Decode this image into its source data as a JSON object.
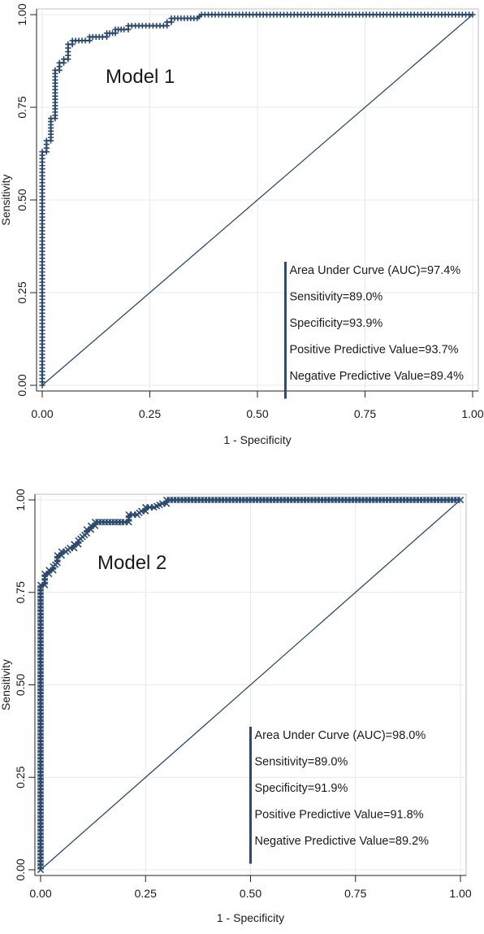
{
  "chart_data": [
    {
      "type": "line",
      "title": "",
      "annotation_title": "Model 1",
      "xlabel": "1 - Specificity",
      "ylabel": "Sensitivity",
      "xlim": [
        0,
        1
      ],
      "ylim": [
        0,
        1
      ],
      "x_ticks": [
        "0.00",
        "0.25",
        "0.50",
        "0.75",
        "1.00"
      ],
      "y_ticks": [
        "0.00",
        "0.25",
        "0.50",
        "0.75",
        "1.00"
      ],
      "grid": true,
      "marker": "plus",
      "line_color": "#2b4a6e",
      "reference_line": [
        [
          0,
          0
        ],
        [
          1,
          1
        ]
      ],
      "stats": [
        "Area Under Curve (AUC)=97.4%",
        "Sensitivity=89.0%",
        "Specificity=93.9%",
        "Positive Predictive Value=93.7%",
        "Negative Predictive Value=89.4%"
      ],
      "stats_bar_x": 0.565,
      "series": [
        {
          "name": "",
          "points": [
            [
              0,
              0
            ],
            [
              0,
              0.63
            ],
            [
              0.01,
              0.63
            ],
            [
              0.01,
              0.66
            ],
            [
              0.02,
              0.66
            ],
            [
              0.02,
              0.72
            ],
            [
              0.03,
              0.72
            ],
            [
              0.03,
              0.78
            ],
            [
              0.03,
              0.85
            ],
            [
              0.04,
              0.85
            ],
            [
              0.04,
              0.87
            ],
            [
              0.05,
              0.87
            ],
            [
              0.05,
              0.88
            ],
            [
              0.06,
              0.88
            ],
            [
              0.06,
              0.9
            ],
            [
              0.06,
              0.92
            ],
            [
              0.07,
              0.92
            ],
            [
              0.07,
              0.93
            ],
            [
              0.1,
              0.93
            ],
            [
              0.11,
              0.93
            ],
            [
              0.11,
              0.94
            ],
            [
              0.14,
              0.94
            ],
            [
              0.15,
              0.94
            ],
            [
              0.15,
              0.95
            ],
            [
              0.17,
              0.95
            ],
            [
              0.17,
              0.96
            ],
            [
              0.19,
              0.96
            ],
            [
              0.2,
              0.96
            ],
            [
              0.2,
              0.97
            ],
            [
              0.29,
              0.97
            ],
            [
              0.29,
              0.98
            ],
            [
              0.3,
              0.98
            ],
            [
              0.3,
              0.99
            ],
            [
              0.36,
              0.99
            ],
            [
              0.37,
              1.0
            ],
            [
              1.0,
              1.0
            ]
          ]
        }
      ]
    },
    {
      "type": "line",
      "title": "",
      "annotation_title": "Model 2",
      "xlabel": "1 - Specificity",
      "ylabel": "Sensitivity",
      "xlim": [
        0,
        1
      ],
      "ylim": [
        0,
        1
      ],
      "x_ticks": [
        "0.00",
        "0.25",
        "0.50",
        "0.75",
        "1.00"
      ],
      "y_ticks": [
        "0.00",
        "0.25",
        "0.50",
        "0.75",
        "1.00"
      ],
      "grid": true,
      "marker": "x",
      "line_color": "#2b4a6e",
      "reference_line": [
        [
          0,
          0
        ],
        [
          1,
          1
        ]
      ],
      "stats": [
        "Area Under Curve (AUC)=98.0%",
        "Sensitivity=89.0%",
        "Specificity=91.9%",
        "Positive Predictive Value=91.8%",
        "Negative Predictive Value=89.2%"
      ],
      "stats_bar_x": 0.5,
      "series": [
        {
          "name": "",
          "points": [
            [
              0,
              0
            ],
            [
              0,
              0.77
            ],
            [
              0.01,
              0.77
            ],
            [
              0.01,
              0.79
            ],
            [
              0.01,
              0.8
            ],
            [
              0.02,
              0.8
            ],
            [
              0.02,
              0.81
            ],
            [
              0.03,
              0.81
            ],
            [
              0.03,
              0.82
            ],
            [
              0.04,
              0.83
            ],
            [
              0.04,
              0.85
            ],
            [
              0.05,
              0.85
            ],
            [
              0.05,
              0.86
            ],
            [
              0.06,
              0.86
            ],
            [
              0.07,
              0.87
            ],
            [
              0.08,
              0.87
            ],
            [
              0.08,
              0.88
            ],
            [
              0.09,
              0.88
            ],
            [
              0.09,
              0.89
            ],
            [
              0.1,
              0.9
            ],
            [
              0.11,
              0.91
            ],
            [
              0.11,
              0.92
            ],
            [
              0.12,
              0.92
            ],
            [
              0.12,
              0.93
            ],
            [
              0.13,
              0.93
            ],
            [
              0.13,
              0.94
            ],
            [
              0.2,
              0.94
            ],
            [
              0.21,
              0.94
            ],
            [
              0.21,
              0.96
            ],
            [
              0.23,
              0.96
            ],
            [
              0.24,
              0.97
            ],
            [
              0.25,
              0.97
            ],
            [
              0.25,
              0.98
            ],
            [
              0.27,
              0.98
            ],
            [
              0.29,
              0.99
            ],
            [
              0.3,
              0.99
            ],
            [
              0.3,
              1.0
            ],
            [
              1.0,
              1.0
            ]
          ]
        }
      ]
    }
  ]
}
